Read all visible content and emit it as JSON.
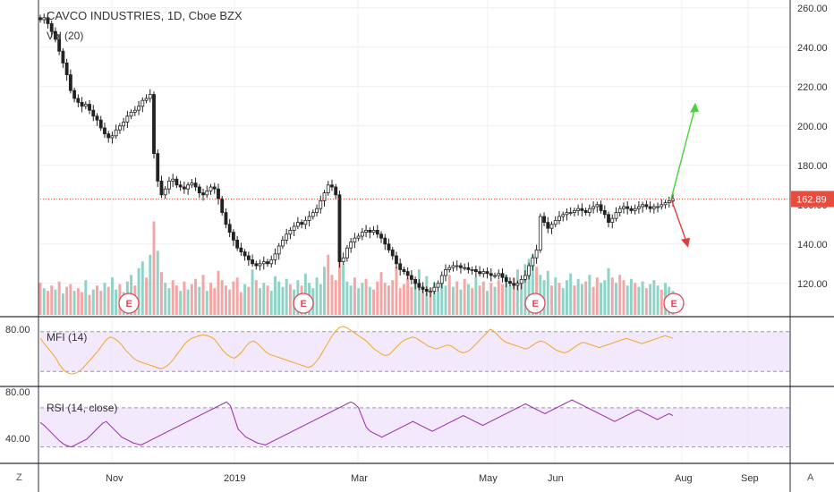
{
  "chart_data": {
    "type": "candlestick",
    "title": "CAVCO INDUSTRIES, 1D, Cboe BZX",
    "price_axis": {
      "ticks": [
        "260.00",
        "240.00",
        "220.00",
        "200.00",
        "180.00",
        "140.00",
        "120.00"
      ],
      "ylim": [
        104,
        264
      ],
      "last_price": "162.89",
      "partially_hidden_tick": "160.00"
    },
    "time_axis": {
      "labels": [
        "Nov",
        "2019",
        "Mar",
        "May",
        "Jun",
        "Aug",
        "Sep"
      ]
    },
    "earnings_markers": [
      "E",
      "E",
      "E",
      "E"
    ],
    "volume": {
      "label": "Vol (20)"
    },
    "mfi": {
      "label": "MFI (14)",
      "ticks": [
        "80.00"
      ],
      "band": [
        20,
        80
      ]
    },
    "rsi": {
      "label": "RSI (14, close)",
      "ticks": [
        "80.00",
        "40.00"
      ],
      "band": [
        30,
        70
      ]
    },
    "price_path": [
      [
        0,
        254
      ],
      [
        1,
        255
      ],
      [
        2,
        252
      ],
      [
        3,
        248
      ],
      [
        4,
        244
      ],
      [
        5,
        238
      ],
      [
        6,
        232
      ],
      [
        7,
        226
      ],
      [
        8,
        218
      ],
      [
        9,
        214
      ],
      [
        10,
        212
      ],
      [
        11,
        210
      ],
      [
        12,
        211
      ],
      [
        13,
        208
      ],
      [
        14,
        205
      ],
      [
        15,
        203
      ],
      [
        16,
        199
      ],
      [
        17,
        196
      ],
      [
        18,
        194
      ],
      [
        19,
        195
      ],
      [
        20,
        198
      ],
      [
        21,
        200
      ],
      [
        22,
        202
      ],
      [
        23,
        205
      ],
      [
        24,
        207
      ],
      [
        25,
        208
      ],
      [
        26,
        210
      ],
      [
        27,
        213
      ],
      [
        28,
        214
      ],
      [
        29,
        216
      ],
      [
        30,
        186
      ],
      [
        31,
        172
      ],
      [
        32,
        165
      ],
      [
        33,
        168
      ],
      [
        34,
        172
      ],
      [
        35,
        173
      ],
      [
        36,
        170
      ],
      [
        37,
        169
      ],
      [
        38,
        168
      ],
      [
        39,
        170
      ],
      [
        40,
        171
      ],
      [
        41,
        169
      ],
      [
        42,
        166
      ],
      [
        43,
        165
      ],
      [
        44,
        167
      ],
      [
        45,
        169
      ],
      [
        46,
        168
      ],
      [
        47,
        163
      ],
      [
        48,
        156
      ],
      [
        49,
        150
      ],
      [
        50,
        146
      ],
      [
        51,
        142
      ],
      [
        52,
        138
      ],
      [
        53,
        136
      ],
      [
        54,
        134
      ],
      [
        55,
        132
      ],
      [
        56,
        130
      ],
      [
        57,
        129
      ],
      [
        58,
        130
      ],
      [
        59,
        131
      ],
      [
        60,
        130
      ],
      [
        61,
        132
      ],
      [
        62,
        135
      ],
      [
        63,
        139
      ],
      [
        64,
        142
      ],
      [
        65,
        145
      ],
      [
        66,
        147
      ],
      [
        67,
        149
      ],
      [
        68,
        151
      ],
      [
        69,
        150
      ],
      [
        70,
        152
      ],
      [
        71,
        154
      ],
      [
        72,
        156
      ],
      [
        73,
        158
      ],
      [
        74,
        162
      ],
      [
        75,
        166
      ],
      [
        76,
        170
      ],
      [
        77,
        169
      ],
      [
        78,
        165
      ],
      [
        79,
        131
      ],
      [
        80,
        133
      ],
      [
        81,
        138
      ],
      [
        82,
        141
      ],
      [
        83,
        143
      ],
      [
        84,
        144
      ],
      [
        85,
        146
      ],
      [
        86,
        147
      ],
      [
        87,
        146
      ],
      [
        88,
        147
      ],
      [
        89,
        145
      ],
      [
        90,
        143
      ],
      [
        91,
        140
      ],
      [
        92,
        137
      ],
      [
        93,
        134
      ],
      [
        94,
        130
      ],
      [
        95,
        127
      ],
      [
        96,
        126
      ],
      [
        97,
        124
      ],
      [
        98,
        122
      ],
      [
        99,
        120
      ],
      [
        100,
        118
      ],
      [
        101,
        117
      ],
      [
        102,
        116
      ],
      [
        103,
        116
      ],
      [
        104,
        118
      ],
      [
        105,
        120
      ],
      [
        106,
        124
      ],
      [
        107,
        127
      ],
      [
        108,
        128
      ],
      [
        109,
        129
      ],
      [
        110,
        129
      ],
      [
        111,
        128
      ],
      [
        112,
        128
      ],
      [
        113,
        127
      ],
      [
        114,
        127
      ],
      [
        115,
        126
      ],
      [
        116,
        125
      ],
      [
        117,
        126
      ],
      [
        118,
        125
      ],
      [
        119,
        124
      ],
      [
        120,
        124
      ],
      [
        121,
        125
      ],
      [
        122,
        123
      ],
      [
        123,
        121
      ],
      [
        124,
        120
      ],
      [
        125,
        119
      ],
      [
        126,
        120
      ],
      [
        127,
        122
      ],
      [
        128,
        124
      ],
      [
        129,
        129
      ],
      [
        130,
        133
      ],
      [
        131,
        137
      ],
      [
        132,
        154
      ],
      [
        133,
        151
      ],
      [
        134,
        148
      ],
      [
        135,
        150
      ],
      [
        136,
        152
      ],
      [
        137,
        154
      ],
      [
        138,
        155
      ],
      [
        139,
        156
      ],
      [
        140,
        156
      ],
      [
        141,
        157
      ],
      [
        142,
        158
      ],
      [
        143,
        157
      ],
      [
        144,
        156
      ],
      [
        145,
        158
      ],
      [
        146,
        159
      ],
      [
        147,
        160
      ],
      [
        148,
        157
      ],
      [
        149,
        155
      ],
      [
        150,
        151
      ],
      [
        151,
        153
      ],
      [
        152,
        156
      ],
      [
        153,
        158
      ],
      [
        154,
        159
      ],
      [
        155,
        158
      ],
      [
        156,
        157
      ],
      [
        157,
        158
      ],
      [
        158,
        159
      ],
      [
        159,
        160
      ],
      [
        160,
        159
      ],
      [
        161,
        158
      ],
      [
        162,
        159
      ],
      [
        163,
        159
      ],
      [
        164,
        160
      ],
      [
        165,
        161
      ],
      [
        166,
        162
      ],
      [
        167,
        163
      ]
    ],
    "volume_bars": [
      24,
      20,
      18,
      22,
      19,
      25,
      16,
      21,
      23,
      18,
      20,
      17,
      26,
      15,
      19,
      22,
      18,
      24,
      21,
      28,
      19,
      23,
      17,
      25,
      30,
      22,
      35,
      40,
      28,
      45,
      70,
      48,
      32,
      24,
      20,
      26,
      22,
      18,
      25,
      19,
      23,
      27,
      21,
      30,
      18,
      24,
      20,
      33,
      26,
      22,
      19,
      25,
      28,
      17,
      23,
      21,
      34,
      26,
      20,
      24,
      22,
      18,
      29,
      25,
      21,
      27,
      23,
      19,
      26,
      22,
      31,
      24,
      20,
      28,
      23,
      36,
      45,
      30,
      26,
      55,
      38,
      25,
      22,
      28,
      20,
      24,
      27,
      21,
      19,
      25,
      32,
      24,
      22,
      26,
      36,
      20,
      23,
      28,
      21,
      25,
      34,
      22,
      29,
      20,
      24,
      18,
      26,
      22,
      30,
      21,
      25,
      19,
      27,
      23,
      20,
      28,
      22,
      25,
      18,
      24,
      21,
      26,
      23,
      30,
      22,
      28,
      34,
      25,
      38,
      42,
      45,
      36,
      30,
      26,
      33,
      22,
      28,
      24,
      20,
      26,
      31,
      22,
      27,
      23,
      25,
      30,
      21,
      28,
      24,
      26,
      35,
      28,
      24,
      30,
      26,
      22,
      27,
      24,
      21,
      25,
      20,
      23,
      26,
      22,
      19,
      24,
      21,
      18
    ],
    "volume_up": [
      false,
      true,
      false,
      false,
      true,
      false,
      true,
      false,
      false,
      true,
      false,
      false,
      true,
      false,
      true,
      false,
      false,
      true,
      false,
      true,
      true,
      false,
      true,
      true,
      true,
      false,
      true,
      true,
      false,
      true,
      false,
      true,
      false,
      true,
      true,
      false,
      false,
      true,
      false,
      true,
      false,
      false,
      true,
      false,
      true,
      false,
      false,
      false,
      false,
      false,
      false,
      false,
      false,
      false,
      true,
      false,
      true,
      false,
      true,
      true,
      false,
      true,
      true,
      true,
      true,
      true,
      false,
      true,
      true,
      false,
      true,
      true,
      true,
      true,
      true,
      true,
      false,
      false,
      false,
      false,
      true,
      true,
      true,
      false,
      true,
      true,
      false,
      true,
      false,
      false,
      false,
      false,
      false,
      false,
      false,
      false,
      false,
      false,
      false,
      true,
      true,
      false,
      true,
      false,
      true,
      true,
      true,
      true,
      false,
      true,
      false,
      true,
      false,
      true,
      false,
      true,
      false,
      false,
      true,
      false,
      true,
      false,
      false,
      true,
      true,
      false,
      true,
      true,
      true,
      true,
      true,
      false,
      true,
      true,
      true,
      false,
      true,
      false,
      true,
      true,
      true,
      false,
      true,
      true,
      false,
      true,
      false,
      false,
      true,
      true,
      true,
      false,
      true,
      false,
      false,
      true,
      true,
      false,
      true,
      true,
      false,
      true,
      true,
      true,
      false,
      true,
      true,
      true
    ],
    "mfi_values": [
      70,
      62,
      55,
      48,
      40,
      30,
      22,
      18,
      16,
      17,
      20,
      25,
      32,
      38,
      45,
      52,
      60,
      68,
      72,
      70,
      66,
      60,
      52,
      46,
      40,
      36,
      34,
      32,
      30,
      28,
      26,
      24,
      26,
      30,
      36,
      44,
      52,
      60,
      66,
      70,
      72,
      74,
      75,
      74,
      72,
      68,
      60,
      52,
      46,
      42,
      40,
      44,
      50,
      58,
      64,
      66,
      62,
      56,
      50,
      46,
      44,
      42,
      40,
      38,
      36,
      34,
      32,
      30,
      28,
      26,
      28,
      34,
      42,
      52,
      62,
      72,
      80,
      86,
      88,
      86,
      82,
      78,
      74,
      70,
      66,
      60,
      54,
      50,
      46,
      44,
      46,
      52,
      58,
      64,
      68,
      70,
      72,
      70,
      66,
      62,
      58,
      56,
      54,
      56,
      58,
      60,
      58,
      54,
      50,
      48,
      50,
      54,
      60,
      66,
      72,
      78,
      84,
      80,
      74,
      68,
      64,
      62,
      60,
      58,
      56,
      54,
      56,
      60,
      64,
      66,
      64,
      60,
      56,
      52,
      50,
      48,
      50,
      54,
      58,
      62,
      64,
      62,
      60,
      58,
      56,
      58,
      60,
      62,
      64,
      66,
      68,
      70,
      68,
      66,
      64,
      62,
      64,
      66,
      68,
      70,
      72,
      74,
      72,
      70
    ],
    "rsi_values": [
      55,
      52,
      48,
      44,
      40,
      36,
      33,
      31,
      30,
      32,
      34,
      36,
      38,
      42,
      46,
      50,
      54,
      56,
      52,
      48,
      44,
      40,
      38,
      36,
      34,
      33,
      32,
      34,
      36,
      38,
      40,
      42,
      44,
      46,
      48,
      50,
      52,
      54,
      56,
      58,
      60,
      62,
      64,
      66,
      68,
      70,
      72,
      74,
      76,
      72,
      60,
      48,
      44,
      40,
      38,
      36,
      34,
      33,
      32,
      34,
      36,
      38,
      40,
      42,
      44,
      46,
      48,
      50,
      52,
      54,
      56,
      58,
      60,
      62,
      64,
      66,
      68,
      70,
      72,
      74,
      76,
      74,
      70,
      60,
      50,
      46,
      44,
      42,
      40,
      42,
      44,
      46,
      48,
      50,
      52,
      54,
      56,
      54,
      52,
      50,
      48,
      46,
      48,
      50,
      52,
      54,
      56,
      58,
      60,
      62,
      60,
      58,
      56,
      54,
      52,
      54,
      56,
      58,
      60,
      62,
      64,
      66,
      68,
      70,
      72,
      74,
      72,
      70,
      68,
      66,
      64,
      66,
      68,
      70,
      72,
      74,
      76,
      78,
      76,
      74,
      72,
      70,
      68,
      66,
      64,
      62,
      60,
      58,
      56,
      58,
      60,
      62,
      64,
      66,
      68,
      66,
      64,
      62,
      60,
      58,
      60,
      62,
      64,
      62
    ],
    "projection": {
      "up_arrow_target": 210,
      "down_arrow_target": 140
    }
  }
}
